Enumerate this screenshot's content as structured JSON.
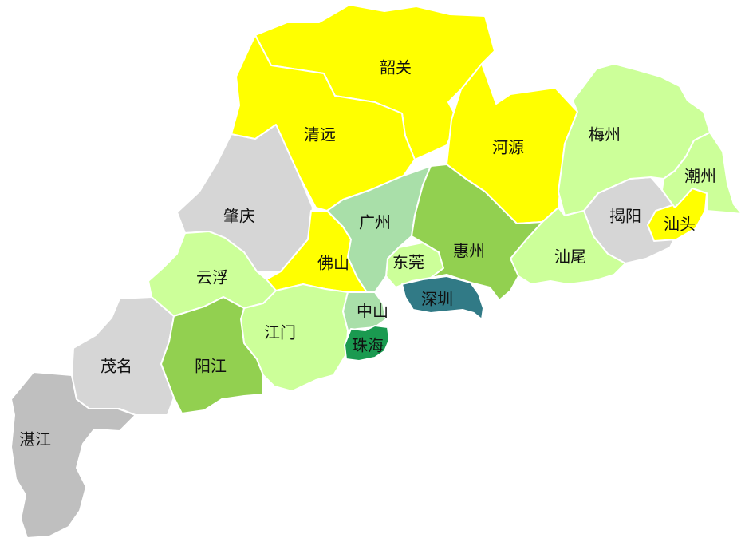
{
  "colors": {
    "yellow": "#ffff00",
    "light_green": "#ccff99",
    "medium_green": "#92d050",
    "pale_green": "#a9dfa9",
    "light_grey": "#d6d6d6",
    "mid_grey": "#bfbfbf",
    "emerald": "#1a9a50",
    "teal": "#317a86"
  },
  "cities": {
    "shaoguan": "韶关",
    "qingyuan": "清远",
    "heyuan": "河源",
    "meizhou": "梅州",
    "chaozhou": "潮州",
    "shantou": "汕头",
    "jieyang": "揭阳",
    "shanwei": "汕尾",
    "huizhou": "惠州",
    "guangzhou": "广州",
    "dongguan": "东莞",
    "shenzhen": "深圳",
    "foshan": "佛山",
    "zhaoqing": "肇庆",
    "yunfu": "云浮",
    "jiangmen": "江门",
    "zhongshan": "中山",
    "zhuhai": "珠海",
    "yangjiang": "阳江",
    "maoming": "茂名",
    "zhanjiang": "湛江"
  }
}
